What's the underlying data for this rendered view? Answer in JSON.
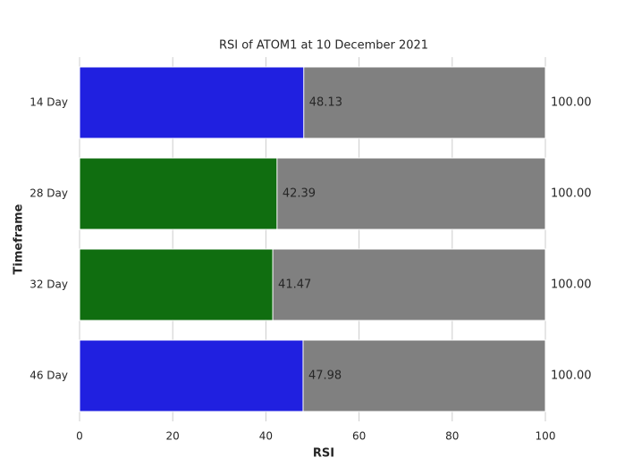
{
  "chart_data": {
    "type": "bar",
    "orientation": "horizontal",
    "title": "RSI of ATOM1 at 10 December 2021",
    "x_label": "RSI",
    "y_label": "Timeframe",
    "categories": [
      "14 Day",
      "28 Day",
      "32 Day",
      "46 Day"
    ],
    "series": [
      {
        "color": "#808080",
        "values": [
          100,
          100,
          100,
          100
        ],
        "value_labels": [
          "100.00",
          "100.00",
          "100.00",
          "100.00"
        ]
      },
      {
        "colors": [
          "#2020e0",
          "#106e10",
          "#106e10",
          "#2020e0"
        ],
        "values": [
          48.13,
          42.39,
          41.47,
          47.98
        ]
      }
    ],
    "xlim": [
      0,
      100
    ],
    "xticks": [
      0,
      20,
      40,
      60,
      80,
      100
    ],
    "grid": true
  }
}
